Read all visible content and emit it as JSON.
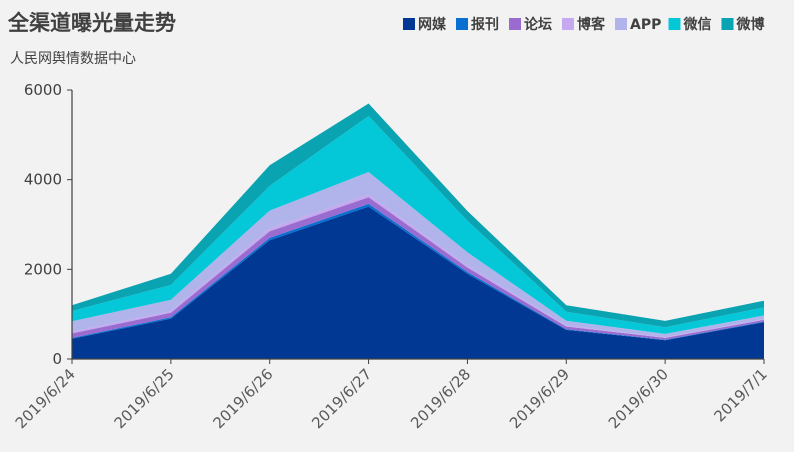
{
  "chart_data": {
    "type": "area",
    "stacked": true,
    "title": "全渠道曝光量走势",
    "subtitle": "人民网舆情数据中心",
    "x": [
      "2019/6/24",
      "2019/6/25",
      "2019/6/26",
      "2019/6/27",
      "2019/6/28",
      "2019/6/29",
      "2019/6/30",
      "2019/7/1"
    ],
    "ylim": [
      0,
      6000
    ],
    "yticks": [
      0,
      2000,
      4000,
      6000
    ],
    "grid": false,
    "legend_position": "top-right",
    "series": [
      {
        "name": "网媒",
        "color": "#003893",
        "values": [
          450,
          900,
          2650,
          3400,
          1900,
          650,
          420,
          820
        ]
      },
      {
        "name": "报刊",
        "color": "#0a6fd1",
        "values": [
          20,
          30,
          50,
          60,
          40,
          15,
          10,
          15
        ]
      },
      {
        "name": "论坛",
        "color": "#9a6cd0",
        "values": [
          100,
          100,
          150,
          150,
          100,
          60,
          40,
          40
        ]
      },
      {
        "name": "博客",
        "color": "#c5a8f0",
        "values": [
          40,
          40,
          60,
          60,
          40,
          20,
          15,
          15
        ]
      },
      {
        "name": "APP",
        "color": "#b1b4ea",
        "values": [
          230,
          250,
          400,
          500,
          300,
          110,
          75,
          80
        ]
      },
      {
        "name": "微信",
        "color": "#04c8d8",
        "values": [
          230,
          330,
          550,
          1250,
          700,
          200,
          150,
          180
        ]
      },
      {
        "name": "微博",
        "color": "#0aa3b2",
        "values": [
          130,
          250,
          460,
          280,
          220,
          145,
          140,
          150
        ]
      }
    ]
  }
}
